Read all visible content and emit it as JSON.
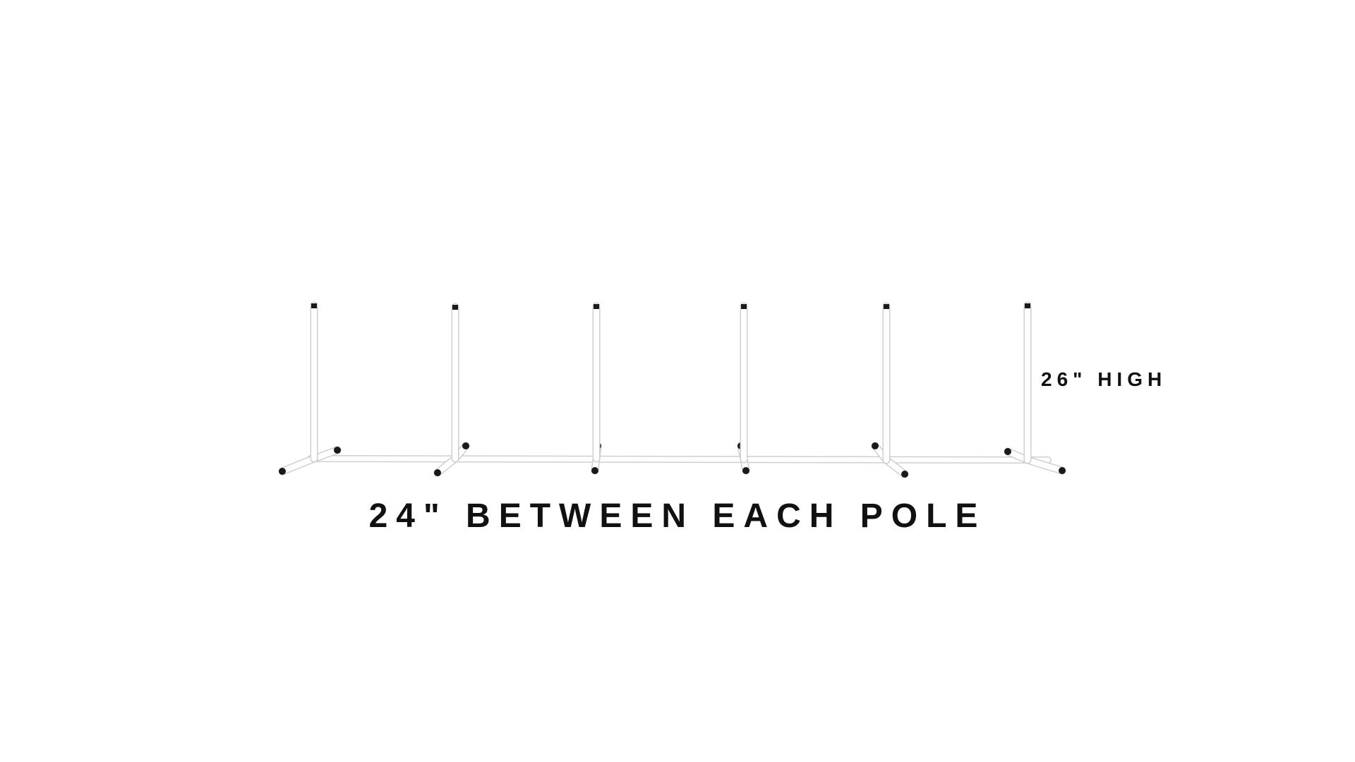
{
  "image": {
    "subject": "weave-poles-set",
    "pole_count": 6,
    "colors": {
      "background": "#ffffff",
      "pole": "#ffffff",
      "pole_outline": "#cfcfcf",
      "cap": "#1a1a1a",
      "text": "#111111"
    }
  },
  "labels": {
    "height": "26\" HIGH",
    "spacing": "24\" BETWEEN EACH POLE"
  }
}
